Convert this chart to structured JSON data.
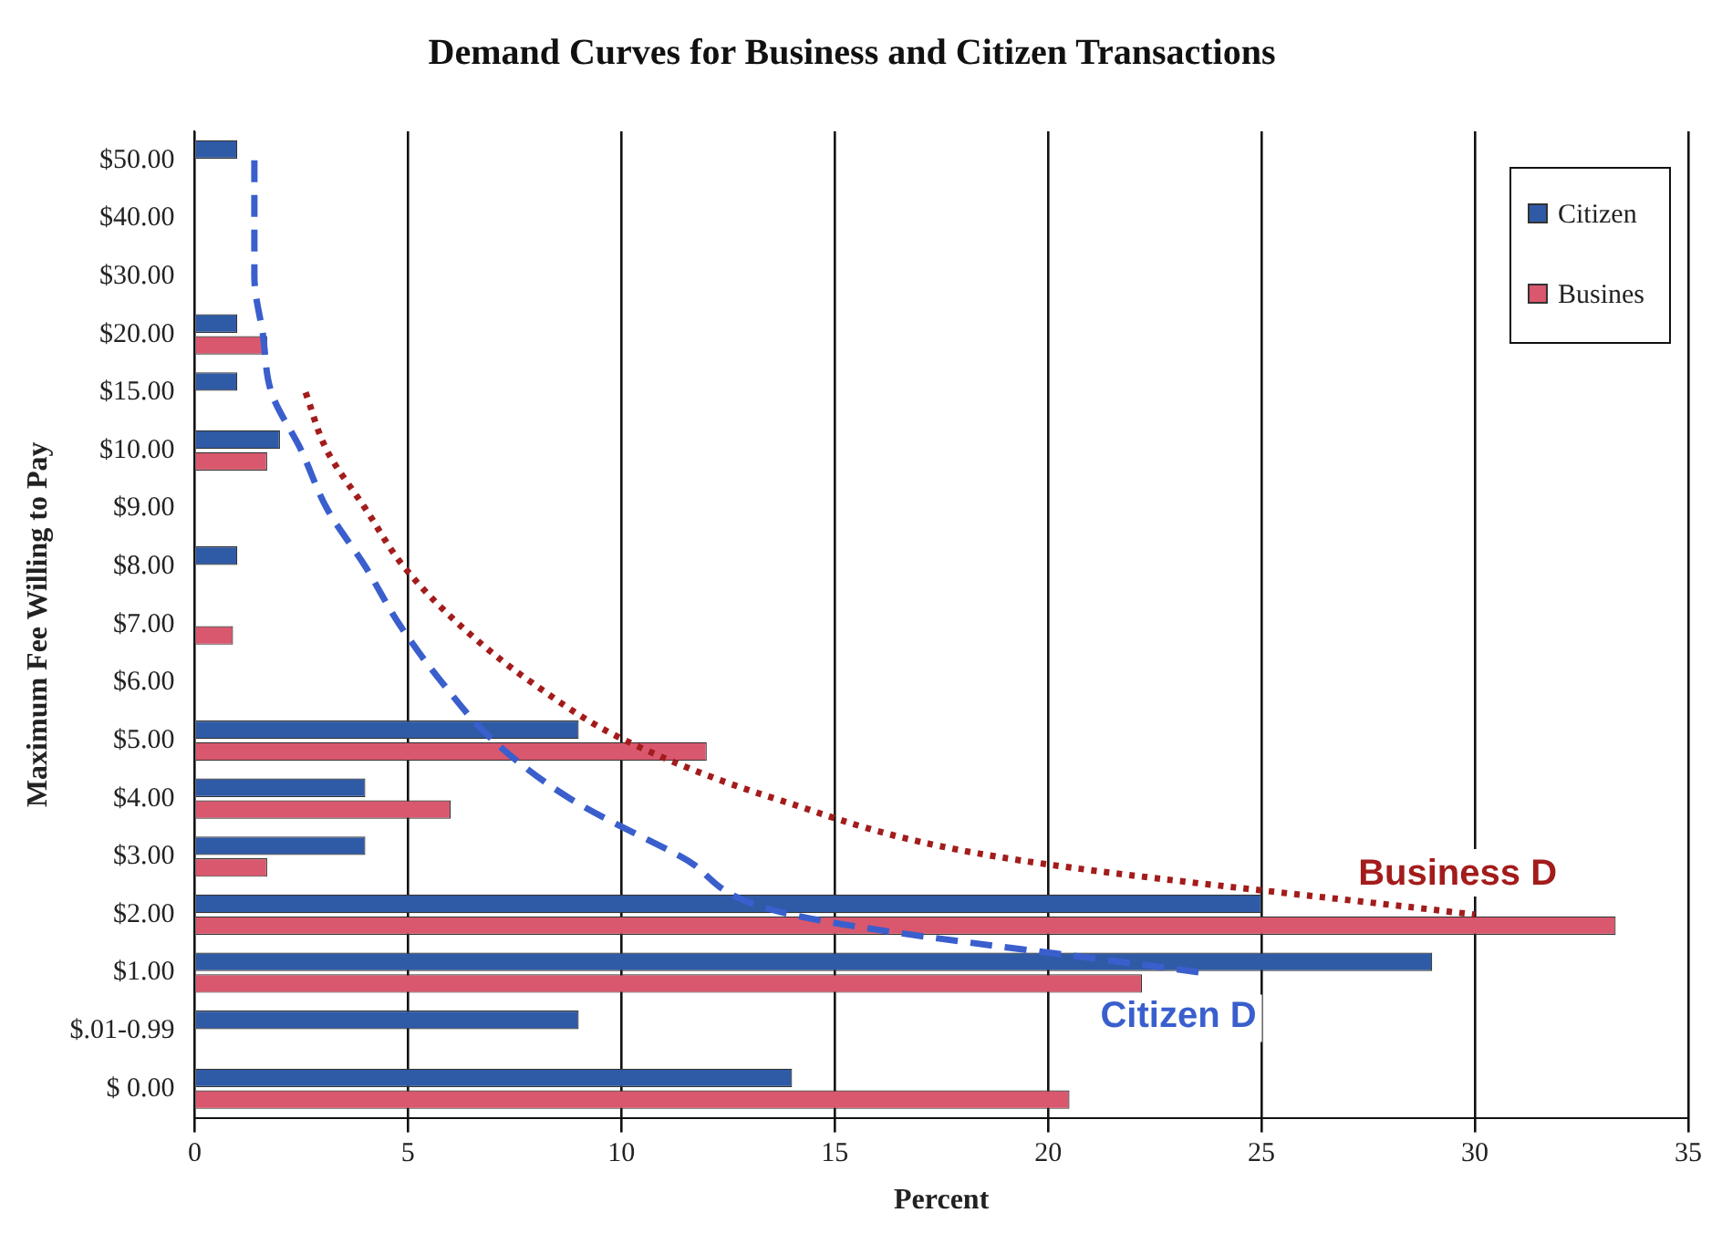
{
  "chart_data": {
    "type": "bar",
    "orientation": "horizontal",
    "title": "Demand Curves for Business and Citizen Transactions",
    "xlabel": "Percent",
    "ylabel": "Maximum Fee Willing to Pay",
    "categories": [
      "$50.00",
      "$40.00",
      "$30.00",
      "$20.00",
      "$15.00",
      "$10.00",
      "$9.00",
      "$8.00",
      "$7.00",
      "$6.00",
      "$5.00",
      "$4.00",
      "$3.00",
      "$2.00",
      "$1.00",
      "$.01-0.99",
      "$ 0.00"
    ],
    "series": [
      {
        "name": "Citizen",
        "color": "#2f5aa6",
        "values": [
          1,
          null,
          null,
          1,
          1,
          2,
          null,
          1,
          null,
          null,
          9,
          4,
          4,
          25,
          29,
          9,
          14
        ]
      },
      {
        "name": "Busines",
        "color": "#d9586e",
        "values": [
          null,
          null,
          null,
          1.7,
          null,
          1.7,
          null,
          null,
          0.9,
          null,
          12,
          6,
          1.7,
          33.3,
          22.2,
          null,
          20.5
        ]
      },
      {
        "name": "Business D",
        "type": "line",
        "line_style": "dotted",
        "color": "#a31c1c",
        "values": [
          null,
          null,
          null,
          null,
          2.6,
          3.1,
          4,
          4.9,
          6.2,
          7.9,
          10.1,
          13.6,
          18.8,
          30,
          null,
          null,
          null
        ]
      },
      {
        "name": "Citizen D",
        "type": "line",
        "line_style": "dashed",
        "color": "#3a5fcd",
        "values": [
          1.4,
          1.4,
          1.4,
          1.6,
          1.8,
          2.5,
          3.1,
          4,
          4.8,
          5.8,
          7,
          8.8,
          11.4,
          14,
          23.6,
          null,
          null
        ]
      }
    ],
    "xlim": [
      0,
      35
    ],
    "xticks": [
      0,
      5,
      10,
      15,
      20,
      25,
      30,
      35
    ],
    "grid": "x",
    "legend": "top right",
    "marker": "none"
  }
}
